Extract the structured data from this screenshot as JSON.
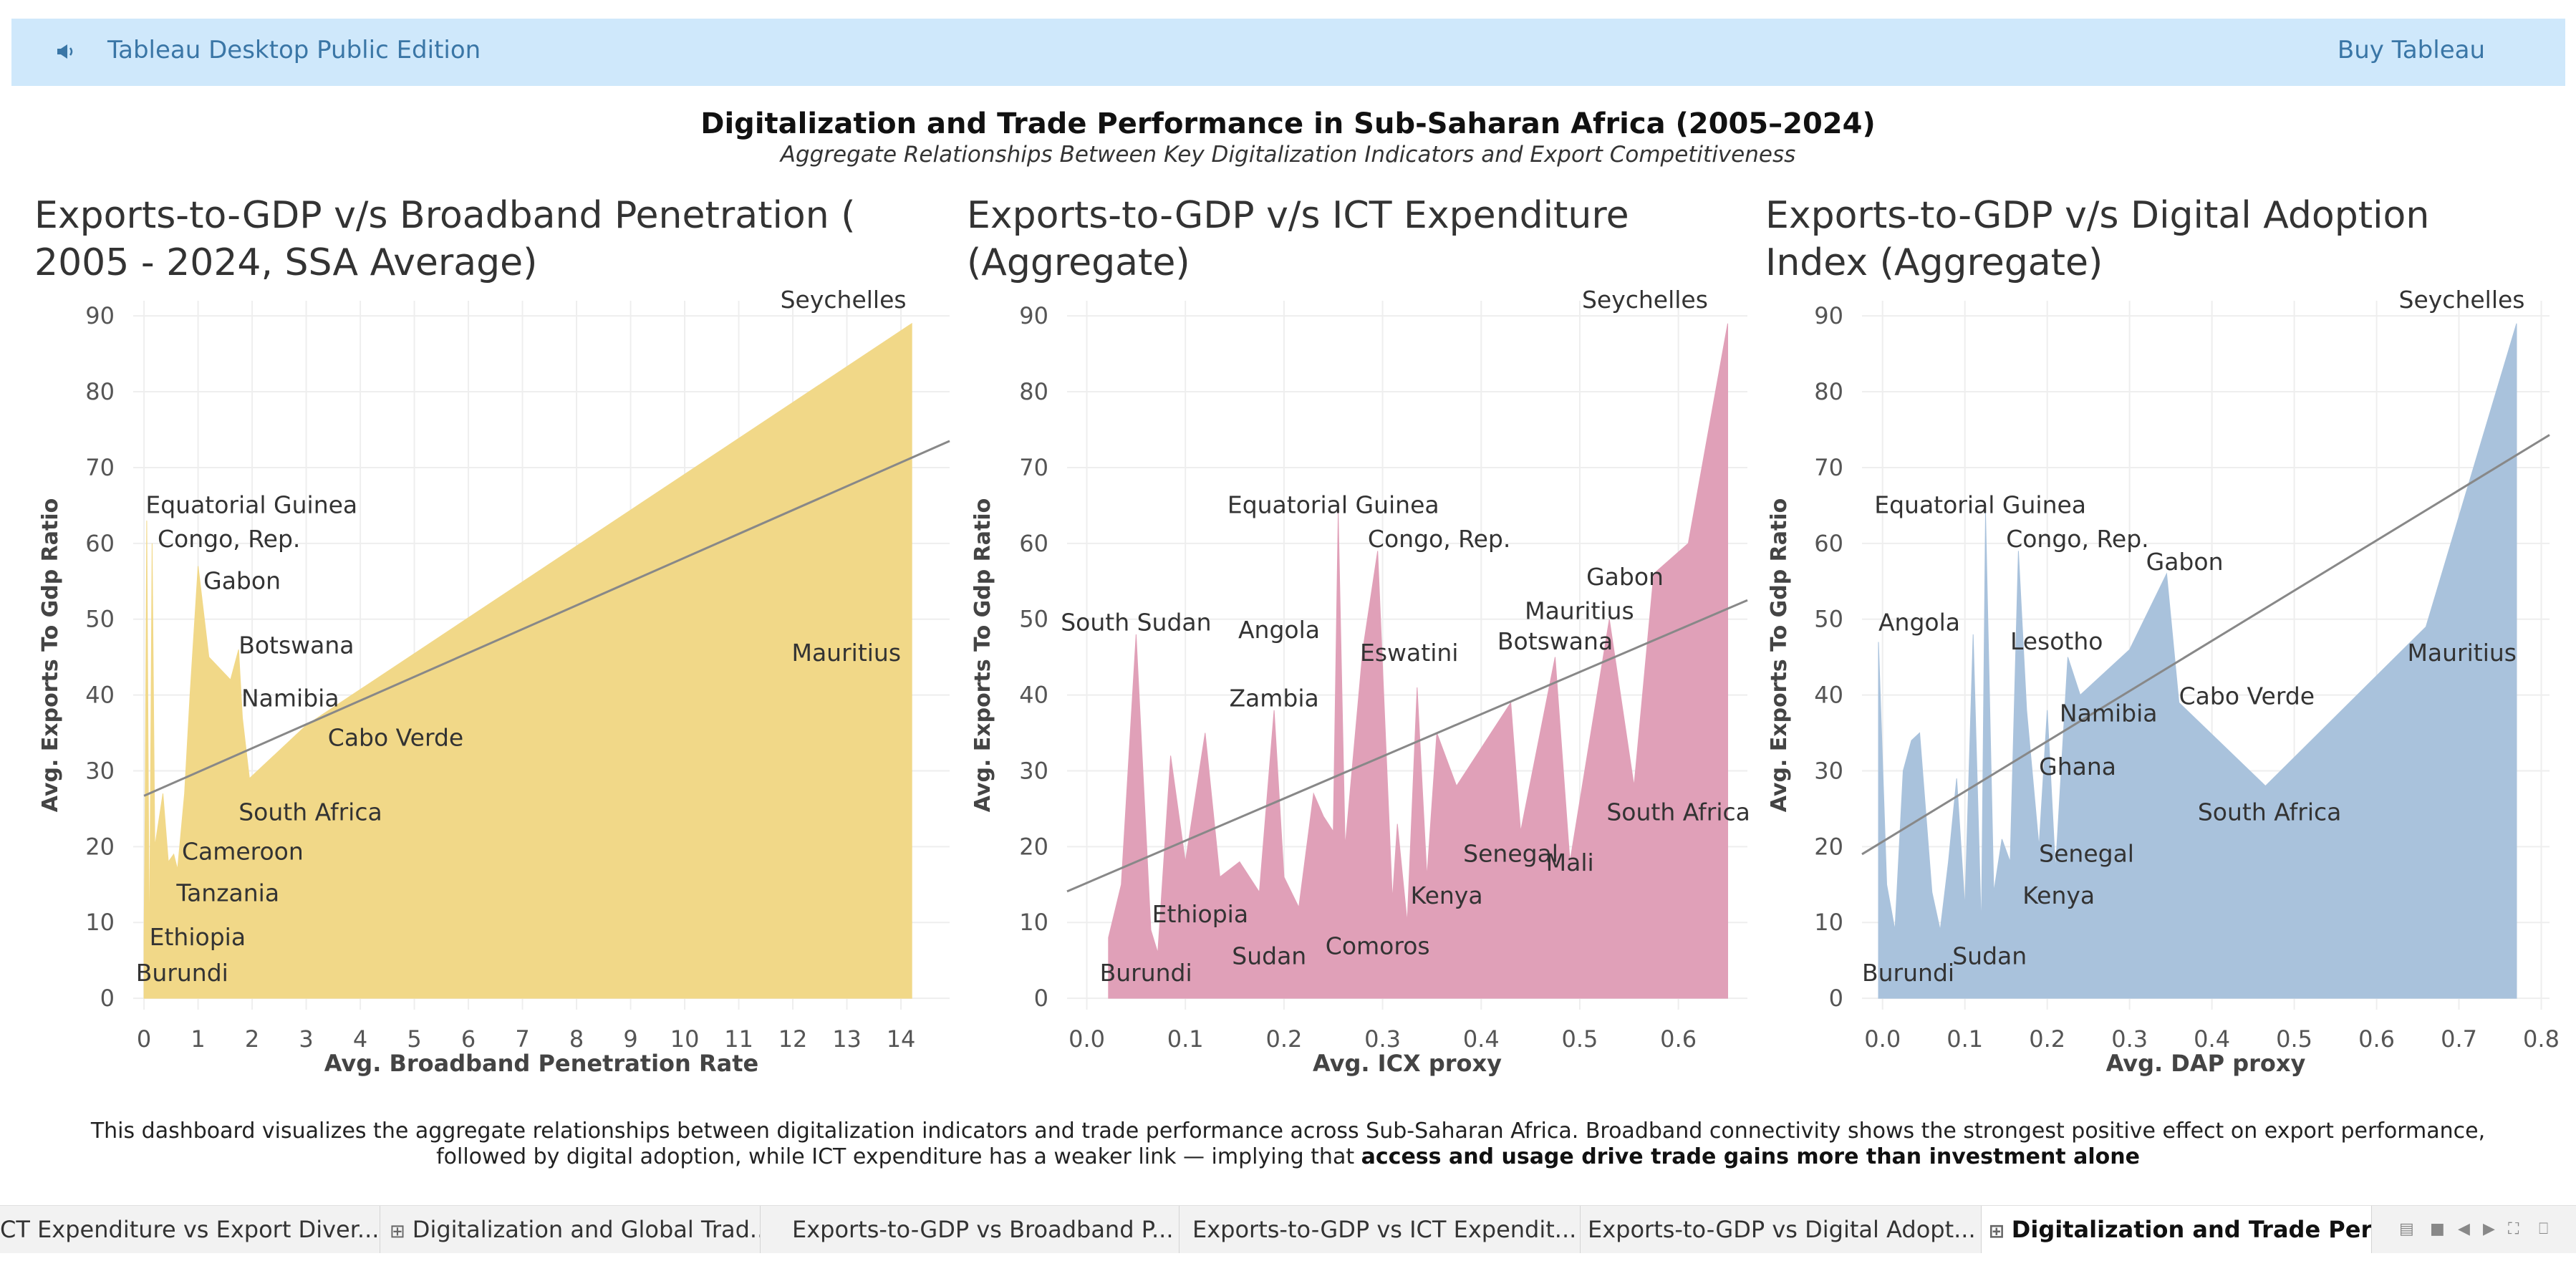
{
  "topbar": {
    "app_title": "Tableau Desktop Public Edition",
    "buy_label": "Buy Tableau"
  },
  "dashboard": {
    "title": "Digitalization and Trade Performance in Sub-Saharan Africa (2005–2024)",
    "subtitle": "Aggregate Relationships Between Key Digitalization Indicators and Export Competitiveness"
  },
  "charts": {
    "c1": {
      "title_line1": "Exports-to-GDP  v/s  Broadband Penetration (",
      "title_line2": "2005 - 2024, SSA Average)"
    },
    "c2": {
      "title_line1": "Exports-to-GDP  v/s  ICT Expenditure",
      "title_line2": "(Aggregate)"
    },
    "c3": {
      "title_line1": "Exports-to-GDP  v/s  Digital Adoption",
      "title_line2": "Index (Aggregate)"
    }
  },
  "chart_data": [
    {
      "type": "area",
      "title": "Exports-to-GDP  v/s  Broadband Penetration ( 2005 - 2024, SSA Average)",
      "xlabel": "Avg. Broadband Penetration Rate",
      "ylabel": "Avg. Exports To Gdp Ratio",
      "xlim": [
        -0.2,
        14.9
      ],
      "ylim": [
        -1.5,
        92
      ],
      "xticks": [
        0,
        1,
        2,
        3,
        4,
        5,
        6,
        7,
        8,
        9,
        10,
        11,
        12,
        13,
        14
      ],
      "yticks": [
        0,
        10,
        20,
        30,
        40,
        50,
        60,
        70,
        80,
        90
      ],
      "color": "#f1d888",
      "trend": [
        [
          0,
          26.7
        ],
        [
          14.9,
          73.5
        ]
      ],
      "points": [
        [
          0,
          8
        ],
        [
          0.02,
          24
        ],
        [
          0.05,
          63
        ],
        [
          0.1,
          5
        ],
        [
          0.15,
          60
        ],
        [
          0.2,
          20
        ],
        [
          0.35,
          27
        ],
        [
          0.45,
          18
        ],
        [
          0.55,
          19
        ],
        [
          0.62,
          17
        ],
        [
          0.75,
          27
        ],
        [
          0.85,
          40
        ],
        [
          1.0,
          57
        ],
        [
          1.2,
          45
        ],
        [
          1.6,
          42
        ],
        [
          1.75,
          46
        ],
        [
          1.82,
          37
        ],
        [
          1.95,
          29
        ],
        [
          3.0,
          36
        ],
        [
          14.2,
          89
        ],
        [
          14.2,
          0
        ]
      ],
      "labels": [
        {
          "text": "Seychelles",
          "x": 14.1,
          "y": 89,
          "anchor": "end",
          "dy": -22
        },
        {
          "text": "Equatorial Guinea",
          "x": 0.03,
          "y": 64,
          "anchor": "start",
          "dy": 0
        },
        {
          "text": "Congo, Rep.",
          "x": 0.25,
          "y": 59.5,
          "anchor": "start",
          "dy": 0
        },
        {
          "text": "Gabon",
          "x": 1.1,
          "y": 54,
          "anchor": "start",
          "dy": 0
        },
        {
          "text": "Botswana",
          "x": 1.75,
          "y": 45.5,
          "anchor": "start",
          "dy": 0
        },
        {
          "text": "Mauritius",
          "x": 14.0,
          "y": 44.5,
          "anchor": "end",
          "dy": 0
        },
        {
          "text": "Namibia",
          "x": 1.8,
          "y": 38.5,
          "anchor": "start",
          "dy": 0
        },
        {
          "text": "Cabo Verde",
          "x": 3.4,
          "y": 33.3,
          "anchor": "start",
          "dy": 0
        },
        {
          "text": "South Africa",
          "x": 1.75,
          "y": 23.5,
          "anchor": "start",
          "dy": 0
        },
        {
          "text": "Cameroon",
          "x": 0.7,
          "y": 18.3,
          "anchor": "start",
          "dy": 0
        },
        {
          "text": "Tanzania",
          "x": 0.6,
          "y": 12.8,
          "anchor": "start",
          "dy": 0
        },
        {
          "text": "Ethiopia",
          "x": 0.1,
          "y": 7,
          "anchor": "start",
          "dy": 0
        },
        {
          "text": "Burundi",
          "x": -0.15,
          "y": 2.3,
          "anchor": "start",
          "dy": 0
        }
      ]
    },
    {
      "type": "area",
      "title": "Exports-to-GDP  v/s  ICT Expenditure (Aggregate)",
      "xlabel": "Avg. ICX proxy",
      "ylabel": "Avg. Exports To Gdp Ratio",
      "xlim": [
        -0.02,
        0.67
      ],
      "ylim": [
        -1.5,
        92
      ],
      "xticks": [
        0.0,
        0.1,
        0.2,
        0.3,
        0.4,
        0.5,
        0.6
      ],
      "xtick_labels": [
        "0.0",
        "0.1",
        "0.2",
        "0.3",
        "0.4",
        "0.5",
        "0.6"
      ],
      "yticks": [
        0,
        10,
        20,
        30,
        40,
        50,
        60,
        70,
        80,
        90
      ],
      "color": "#e0a0b8",
      "trend": [
        [
          -0.02,
          14.1
        ],
        [
          0.67,
          52.5
        ]
      ],
      "points": [
        [
          0.022,
          0
        ],
        [
          0.022,
          8
        ],
        [
          0.035,
          15
        ],
        [
          0.05,
          48
        ],
        [
          0.065,
          9
        ],
        [
          0.072,
          6
        ],
        [
          0.085,
          32
        ],
        [
          0.1,
          18
        ],
        [
          0.12,
          35
        ],
        [
          0.135,
          16
        ],
        [
          0.155,
          18
        ],
        [
          0.175,
          14
        ],
        [
          0.19,
          38
        ],
        [
          0.2,
          16
        ],
        [
          0.215,
          12
        ],
        [
          0.23,
          27
        ],
        [
          0.24,
          24
        ],
        [
          0.25,
          22
        ],
        [
          0.255,
          64
        ],
        [
          0.262,
          20
        ],
        [
          0.28,
          46
        ],
        [
          0.295,
          59
        ],
        [
          0.31,
          13
        ],
        [
          0.315,
          23
        ],
        [
          0.325,
          10
        ],
        [
          0.335,
          41
        ],
        [
          0.345,
          16
        ],
        [
          0.355,
          35
        ],
        [
          0.375,
          28
        ],
        [
          0.43,
          39
        ],
        [
          0.44,
          22
        ],
        [
          0.475,
          45
        ],
        [
          0.49,
          18
        ],
        [
          0.53,
          50
        ],
        [
          0.555,
          28
        ],
        [
          0.575,
          56
        ],
        [
          0.61,
          60
        ],
        [
          0.65,
          89
        ],
        [
          0.65,
          0
        ]
      ],
      "labels": [
        {
          "text": "Seychelles",
          "x": 0.63,
          "y": 89,
          "anchor": "end",
          "dy": -22
        },
        {
          "text": "Equatorial Guinea",
          "x": 0.25,
          "y": 64,
          "anchor": "middle",
          "dy": 0
        },
        {
          "text": "Congo, Rep.",
          "x": 0.285,
          "y": 59.5,
          "anchor": "start",
          "dy": 0
        },
        {
          "text": "Gabon",
          "x": 0.585,
          "y": 54.5,
          "anchor": "end",
          "dy": 0
        },
        {
          "text": "South Sudan",
          "x": 0.05,
          "y": 48.5,
          "anchor": "middle",
          "dy": 0
        },
        {
          "text": "Angola",
          "x": 0.195,
          "y": 47.5,
          "anchor": "middle",
          "dy": 0
        },
        {
          "text": "Mauritius",
          "x": 0.555,
          "y": 50,
          "anchor": "end",
          "dy": 0
        },
        {
          "text": "Botswana",
          "x": 0.475,
          "y": 46,
          "anchor": "middle",
          "dy": 0
        },
        {
          "text": "Eswatini",
          "x": 0.327,
          "y": 44.5,
          "anchor": "middle",
          "dy": 0
        },
        {
          "text": "Zambia",
          "x": 0.19,
          "y": 38.5,
          "anchor": "middle",
          "dy": 0
        },
        {
          "text": "South Africa",
          "x": 0.6,
          "y": 23.5,
          "anchor": "middle",
          "dy": 0
        },
        {
          "text": "Senegal",
          "x": 0.43,
          "y": 18,
          "anchor": "middle",
          "dy": 0
        },
        {
          "text": "Mali",
          "x": 0.49,
          "y": 16.8,
          "anchor": "middle",
          "dy": 0
        },
        {
          "text": "Ethiopia",
          "x": 0.115,
          "y": 10,
          "anchor": "middle",
          "dy": 0
        },
        {
          "text": "Kenya",
          "x": 0.365,
          "y": 12.5,
          "anchor": "middle",
          "dy": 0
        },
        {
          "text": "Sudan",
          "x": 0.185,
          "y": 4.5,
          "anchor": "middle",
          "dy": 0
        },
        {
          "text": "Comoros",
          "x": 0.295,
          "y": 5.8,
          "anchor": "middle",
          "dy": 0
        },
        {
          "text": "Burundi",
          "x": 0.06,
          "y": 2.3,
          "anchor": "middle",
          "dy": 0
        }
      ]
    },
    {
      "type": "area",
      "title": "Exports-to-GDP  v/s  Digital Adoption Index (Aggregate)",
      "xlabel": "Avg. DAP proxy",
      "ylabel": "Avg. Exports To Gdp Ratio",
      "xlim": [
        -0.025,
        0.81
      ],
      "ylim": [
        -1.5,
        92
      ],
      "xticks": [
        0.0,
        0.1,
        0.2,
        0.3,
        0.4,
        0.5,
        0.6,
        0.7,
        0.8
      ],
      "xtick_labels": [
        "0.0",
        "0.1",
        "0.2",
        "0.3",
        "0.4",
        "0.5",
        "0.6",
        "0.7",
        "0.8"
      ],
      "yticks": [
        0,
        10,
        20,
        30,
        40,
        50,
        60,
        70,
        80,
        90
      ],
      "color": "#a9c2dc",
      "trend": [
        [
          -0.025,
          19
        ],
        [
          0.81,
          74.3
        ]
      ],
      "points": [
        [
          -0.005,
          0
        ],
        [
          -0.005,
          47
        ],
        [
          0.005,
          15
        ],
        [
          0.015,
          9
        ],
        [
          0.025,
          30
        ],
        [
          0.035,
          34
        ],
        [
          0.045,
          35
        ],
        [
          0.06,
          14
        ],
        [
          0.07,
          9
        ],
        [
          0.08,
          18
        ],
        [
          0.09,
          29
        ],
        [
          0.1,
          12
        ],
        [
          0.11,
          48
        ],
        [
          0.12,
          9
        ],
        [
          0.125,
          64
        ],
        [
          0.135,
          14
        ],
        [
          0.145,
          21
        ],
        [
          0.155,
          18
        ],
        [
          0.165,
          59
        ],
        [
          0.175,
          38
        ],
        [
          0.19,
          20
        ],
        [
          0.2,
          38
        ],
        [
          0.21,
          17
        ],
        [
          0.225,
          45
        ],
        [
          0.24,
          40
        ],
        [
          0.3,
          46
        ],
        [
          0.345,
          56
        ],
        [
          0.36,
          39
        ],
        [
          0.465,
          28
        ],
        [
          0.66,
          49
        ],
        [
          0.77,
          89
        ],
        [
          0.77,
          0
        ]
      ],
      "labels": [
        {
          "text": "Seychelles",
          "x": 0.78,
          "y": 89,
          "anchor": "end",
          "dy": -22
        },
        {
          "text": "Equatorial Guinea",
          "x": -0.01,
          "y": 64,
          "anchor": "start",
          "dy": 0
        },
        {
          "text": "Congo, Rep.",
          "x": 0.15,
          "y": 59.5,
          "anchor": "start",
          "dy": 0
        },
        {
          "text": "Gabon",
          "x": 0.32,
          "y": 56.5,
          "anchor": "start",
          "dy": 0
        },
        {
          "text": "Angola",
          "x": -0.005,
          "y": 48.5,
          "anchor": "start",
          "dy": 0
        },
        {
          "text": "Lesotho",
          "x": 0.155,
          "y": 46,
          "anchor": "start",
          "dy": 0
        },
        {
          "text": "Mauritius",
          "x": 0.77,
          "y": 44.5,
          "anchor": "end",
          "dy": 0
        },
        {
          "text": "Cabo Verde",
          "x": 0.36,
          "y": 38.8,
          "anchor": "start",
          "dy": 0
        },
        {
          "text": "Namibia",
          "x": 0.215,
          "y": 36.5,
          "anchor": "start",
          "dy": 0
        },
        {
          "text": "Ghana",
          "x": 0.19,
          "y": 29.5,
          "anchor": "start",
          "dy": 0
        },
        {
          "text": "South Africa",
          "x": 0.47,
          "y": 23.5,
          "anchor": "middle",
          "dy": 0
        },
        {
          "text": "Senegal",
          "x": 0.19,
          "y": 18,
          "anchor": "start",
          "dy": 0
        },
        {
          "text": "Kenya",
          "x": 0.17,
          "y": 12.5,
          "anchor": "start",
          "dy": 0
        },
        {
          "text": "Sudan",
          "x": 0.13,
          "y": 4.5,
          "anchor": "middle",
          "dy": 0
        },
        {
          "text": "Burundi",
          "x": -0.025,
          "y": 2.3,
          "anchor": "start",
          "dy": 0
        }
      ]
    }
  ],
  "caption": {
    "line1": "This dashboard visualizes the aggregate relationships between digitalization indicators and trade performance across Sub-Saharan Africa. Broadband connectivity shows the strongest positive effect on export performance,",
    "line2_plain": "followed by digital adoption, while ICT expenditure has a weaker link — implying that ",
    "line2_bold": "access and usage drive trade gains more than investment alone"
  },
  "tabs": [
    {
      "label": "CT Expenditure vs Export Diver...",
      "icon": ""
    },
    {
      "label": "Digitalization and Global Trad...",
      "icon": "⊞"
    },
    {
      "label": "Exports-to-GDP vs Broadband P...",
      "icon": ""
    },
    {
      "label": "Exports-to-GDP vs ICT Expendit...",
      "icon": ""
    },
    {
      "label": "Exports-to-GDP vs Digital Adopt...",
      "icon": ""
    },
    {
      "label": "Digitalization and Trade Perf...",
      "icon": "⊞",
      "active": true
    }
  ],
  "colors": {
    "topbar_bg": "#cfe8fb",
    "link": "#3a76a6",
    "trend": "#888888"
  }
}
